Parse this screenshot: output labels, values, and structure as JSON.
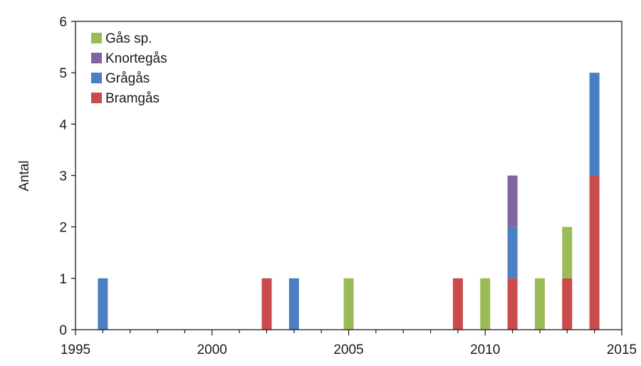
{
  "chart_data": {
    "type": "bar",
    "stacked": true,
    "title": "",
    "xlabel": "",
    "ylabel": "Antal",
    "xlim": [
      1995,
      2015
    ],
    "ylim": [
      0,
      6
    ],
    "x_ticks": [
      1995,
      2000,
      2005,
      2010,
      2015
    ],
    "y_ticks": [
      0,
      1,
      2,
      3,
      4,
      5,
      6
    ],
    "grid": false,
    "legend_position": "top-left",
    "x": [
      1996,
      2002,
      2003,
      2005,
      2009,
      2010,
      2011,
      2012,
      2013,
      2014
    ],
    "series": [
      {
        "name": "Bramgås",
        "color": "#c94b4b",
        "values": [
          0,
          1,
          0,
          0,
          1,
          0,
          1,
          0,
          1,
          3
        ]
      },
      {
        "name": "Grågås",
        "color": "#4a7fc1",
        "values": [
          1,
          0,
          1,
          0,
          0,
          0,
          1,
          0,
          0,
          2
        ]
      },
      {
        "name": "Knortegås",
        "color": "#8064a2",
        "values": [
          0,
          0,
          0,
          0,
          0,
          0,
          1,
          0,
          0,
          0
        ]
      },
      {
        "name": "Gås sp.",
        "color": "#9bbb59",
        "values": [
          0,
          0,
          0,
          1,
          0,
          1,
          0,
          1,
          1,
          0
        ]
      }
    ],
    "legend_order": [
      "Gås sp.",
      "Knortegås",
      "Grågås",
      "Bramgås"
    ]
  }
}
